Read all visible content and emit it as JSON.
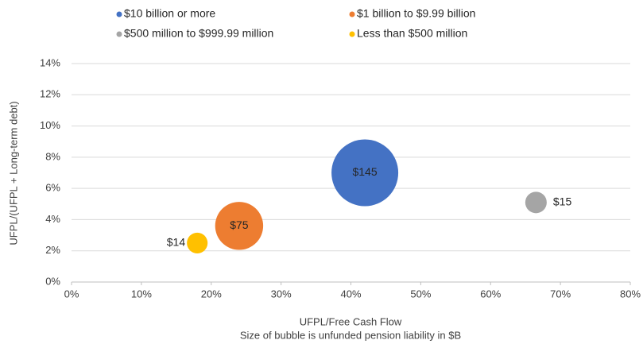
{
  "chart_data": {
    "type": "bubble",
    "x_label": "UFPL/Free Cash Flow",
    "note": "Size of bubble is unfunded pension liability in $B",
    "y_label": "UFPL/(UFPL + Long-term debt)",
    "series": [
      {
        "name": "$10 billion or more",
        "color": "#4472c4",
        "x": [
          42
        ],
        "values": [
          7
        ],
        "sizes": [
          145
        ],
        "value_labels": [
          "$145"
        ],
        "label_position": "center"
      },
      {
        "name": "$1 billion to $9.99 billion",
        "color": "#ed7d31",
        "x": [
          24
        ],
        "values": [
          3.6
        ],
        "sizes": [
          75
        ],
        "value_labels": [
          "$75"
        ],
        "label_position": "center"
      },
      {
        "name": "$500 million to $999.99 million",
        "color": "#a5a5a5",
        "x": [
          66.5
        ],
        "values": [
          5.1
        ],
        "sizes": [
          15
        ],
        "value_labels": [
          "$15"
        ],
        "label_position": "right"
      },
      {
        "name": "Less than $500 million",
        "color": "#ffc000",
        "x": [
          18
        ],
        "values": [
          2.5
        ],
        "sizes": [
          14
        ],
        "value_labels": [
          "$14"
        ],
        "label_position": "left"
      }
    ],
    "xlim": [
      0,
      80
    ],
    "xticks": [
      {
        "value": 0,
        "label": "0%"
      },
      {
        "value": 10,
        "label": "10%"
      },
      {
        "value": 20,
        "label": "20%"
      },
      {
        "value": 30,
        "label": "30%"
      },
      {
        "value": 40,
        "label": "40%"
      },
      {
        "value": 50,
        "label": "50%"
      },
      {
        "value": 60,
        "label": "60%"
      },
      {
        "value": 70,
        "label": "70%"
      },
      {
        "value": 80,
        "label": "80%"
      }
    ],
    "ylim": [
      0,
      14
    ],
    "yticks": [
      {
        "value": 0,
        "label": "0%"
      },
      {
        "value": 2,
        "label": "2%"
      },
      {
        "value": 4,
        "label": "4%"
      },
      {
        "value": 6,
        "label": "6%"
      },
      {
        "value": 8,
        "label": "8%"
      },
      {
        "value": 10,
        "label": "10%"
      },
      {
        "value": 12,
        "label": "12%"
      },
      {
        "value": 14,
        "label": "14%"
      }
    ],
    "grid": true,
    "legend": "top"
  }
}
